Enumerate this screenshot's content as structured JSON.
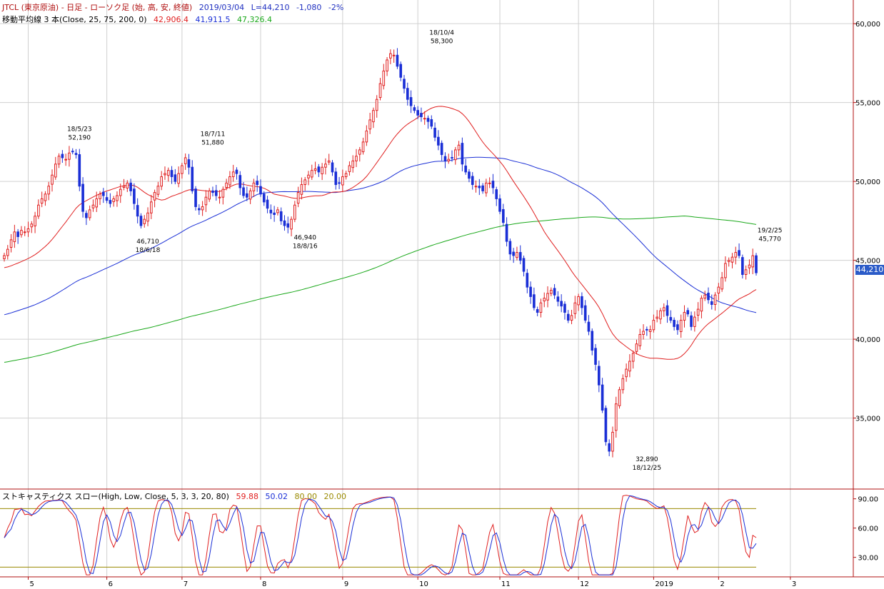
{
  "header": {
    "symbol_line": "JTCL (東京原油) - 日足 - ローソク足 (始, 高, 安, 終値)",
    "date": "2019/03/04",
    "last": "L=44,210",
    "change": "-1,080",
    "pct": "-2%",
    "ma_title": "移動平均線 3 本(Close, 25, 75, 200, 0)",
    "ma25": "42,906.4",
    "ma75": "41,911.5",
    "ma200": "47,326.4",
    "stoch_title": "ストキャスティクス スロー(High, Low, Close, 5, 3, 3, 20, 80)",
    "stoch_k": "59.88",
    "stoch_d": "50.02",
    "stoch_hi": "80.00",
    "stoch_lo": "20.00"
  },
  "colors": {
    "up": "#e02020",
    "down": "#1a2fd6",
    "ma25": "#e02020",
    "ma75": "#1a2fd6",
    "ma200": "#1aa81a",
    "axis": "#b01010",
    "grid": "#d0d0d0",
    "stoch_lines": "#9a8a00"
  },
  "last_price_tag": "44,210",
  "chart_data": [
    {
      "type": "candlestick",
      "title": "JTCL (東京原油) - 日足 - ローソク足 (始, 高, 安, 終値)",
      "ylim": [
        30500,
        61500
      ],
      "y_ticks": [
        35000,
        40000,
        45000,
        50000,
        55000,
        60000
      ],
      "y_tick_labels": [
        "35,000",
        "40,000",
        "45,000",
        "50,000",
        "55,000",
        "60,000"
      ],
      "x_range_index": [
        0,
        230
      ],
      "month_labels": [
        {
          "label": "5",
          "i": 7
        },
        {
          "label": "6",
          "i": 30
        },
        {
          "label": "7",
          "i": 52
        },
        {
          "label": "8",
          "i": 75
        },
        {
          "label": "9",
          "i": 99
        },
        {
          "label": "10",
          "i": 121
        },
        {
          "label": "11",
          "i": 145
        },
        {
          "label": "12",
          "i": 168
        },
        {
          "label": "2019",
          "i": 190
        },
        {
          "label": "2",
          "i": 209
        },
        {
          "label": "3",
          "i": 230
        }
      ],
      "close": [
        45300,
        45700,
        46300,
        46800,
        46500,
        46900,
        46800,
        47000,
        47300,
        47800,
        48500,
        48900,
        49200,
        49700,
        50400,
        51100,
        51600,
        51500,
        51400,
        51800,
        51900,
        51700,
        49700,
        48100,
        47700,
        48200,
        48500,
        48900,
        49200,
        49100,
        48800,
        48600,
        48900,
        49100,
        49500,
        49700,
        49900,
        49400,
        48600,
        47800,
        47200,
        47600,
        48000,
        48700,
        49300,
        49700,
        50300,
        50500,
        50700,
        50300,
        50000,
        50500,
        51000,
        51500,
        50900,
        49400,
        48400,
        48200,
        48400,
        49000,
        49400,
        49300,
        49100,
        49000,
        49500,
        49900,
        50300,
        50600,
        50500,
        49600,
        49100,
        49000,
        49400,
        49900,
        49800,
        49200,
        48700,
        48300,
        48000,
        47900,
        48200,
        47500,
        47200,
        47100,
        47600,
        48500,
        49300,
        49800,
        50100,
        50400,
        50700,
        50800,
        50600,
        50900,
        51100,
        51300,
        50600,
        49800,
        49900,
        50300,
        50500,
        51000,
        51300,
        51600,
        52000,
        52500,
        53200,
        53900,
        54500,
        55200,
        56200,
        57000,
        57700,
        58100,
        58000,
        57300,
        56600,
        55900,
        55200,
        54800,
        54500,
        54200,
        54100,
        54000,
        53800,
        53500,
        52800,
        52300,
        51700,
        51300,
        51400,
        51500,
        52000,
        52300,
        51100,
        50600,
        50200,
        49800,
        49700,
        49600,
        49400,
        49900,
        49900,
        49600,
        48900,
        48100,
        47400,
        46200,
        45400,
        45300,
        45500,
        45000,
        44300,
        43300,
        42700,
        42000,
        41700,
        42300,
        42600,
        42900,
        43100,
        42800,
        42400,
        42100,
        41700,
        41200,
        41500,
        42300,
        42700,
        42000,
        41200,
        40500,
        39300,
        38400,
        37100,
        35500,
        33500,
        32900,
        34100,
        35900,
        36800,
        37500,
        38100,
        38600,
        39100,
        39700,
        40300,
        40500,
        40600,
        40600,
        41200,
        41400,
        41800,
        42000,
        41500,
        41200,
        40800,
        40600,
        41200,
        41700,
        41600,
        40800,
        41400,
        41900,
        42600,
        42800,
        42500,
        42200,
        42800,
        43300,
        43900,
        44800,
        45000,
        45200,
        45500,
        45300,
        44100,
        44400,
        44700,
        45290,
        44210
      ]
    },
    {
      "type": "line",
      "title": "ストキャスティクス スロー(High, Low, Close, 5, 3, 3, 20, 80)",
      "ylim": [
        10,
        100
      ],
      "y_ticks": [
        30,
        60,
        90
      ],
      "y_tick_labels": [
        "30.00",
        "60.00",
        "90.00"
      ],
      "reference_lines": [
        20,
        80
      ],
      "series": [
        {
          "name": "59.88",
          "color": "#e02020"
        },
        {
          "name": "50.02",
          "color": "#1a2fd6"
        }
      ]
    }
  ],
  "annotations": [
    {
      "date": "18/5/23",
      "value": "52,190",
      "i": 22,
      "price": 52190,
      "pos": "above"
    },
    {
      "date": "18/7/11",
      "value": "51,880",
      "i": 61,
      "price": 51880,
      "pos": "above"
    },
    {
      "date": "18/10/4",
      "value": "58,300",
      "i": 128,
      "price": 58300,
      "pos": "above"
    },
    {
      "date": "19/2/25",
      "value": "45,770",
      "i": 224,
      "price": 45770,
      "pos": "above"
    },
    {
      "date": "18/6/18",
      "value": "46,710",
      "i": 42,
      "price": 46710,
      "pos": "below"
    },
    {
      "date": "18/8/16",
      "value": "46,940",
      "i": 88,
      "price": 46940,
      "pos": "below"
    },
    {
      "date": "18/12/25",
      "value": "32,890",
      "i": 188,
      "price": 32890,
      "pos": "below"
    }
  ]
}
